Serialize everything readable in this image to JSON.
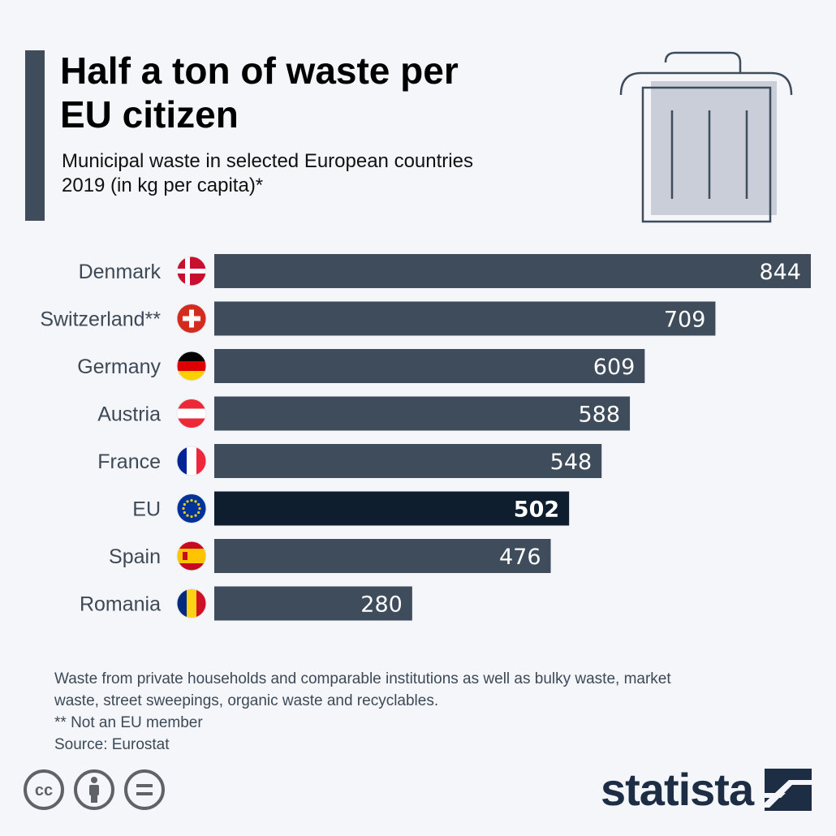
{
  "header": {
    "title": "Half a ton of waste per EU citizen",
    "subtitle": "Municipal waste in selected European countries 2019 (in kg per capita)*"
  },
  "chart_data": {
    "type": "bar",
    "orientation": "horizontal",
    "title": "Half a ton of waste per EU citizen",
    "subtitle": "Municipal waste in selected European countries 2019 (in kg per capita)*",
    "categories": [
      "Denmark",
      "Switzerland**",
      "Germany",
      "Austria",
      "France",
      "EU",
      "Spain",
      "Romania"
    ],
    "values": [
      844,
      709,
      609,
      588,
      548,
      502,
      476,
      280
    ],
    "unit": "kg per capita",
    "highlight": "EU",
    "xlim": [
      0,
      844
    ],
    "xlabel": "",
    "ylabel": "",
    "grid": false,
    "colors": {
      "bar": "#3e4c5c",
      "highlight": "#0f1e2e",
      "label": "#ffffff"
    }
  },
  "notes": [
    "Waste from private households and comparable institutions as well as bulky waste, market waste, street sweepings, organic waste and recyclables.",
    "** Not an EU member",
    "Source: Eurostat"
  ],
  "branding": {
    "logo_text": "statista"
  },
  "icons": [
    "trash-can-icon",
    "creative-commons-icon",
    "attribution-icon",
    "no-derivatives-icon",
    "statista-logo-icon"
  ]
}
